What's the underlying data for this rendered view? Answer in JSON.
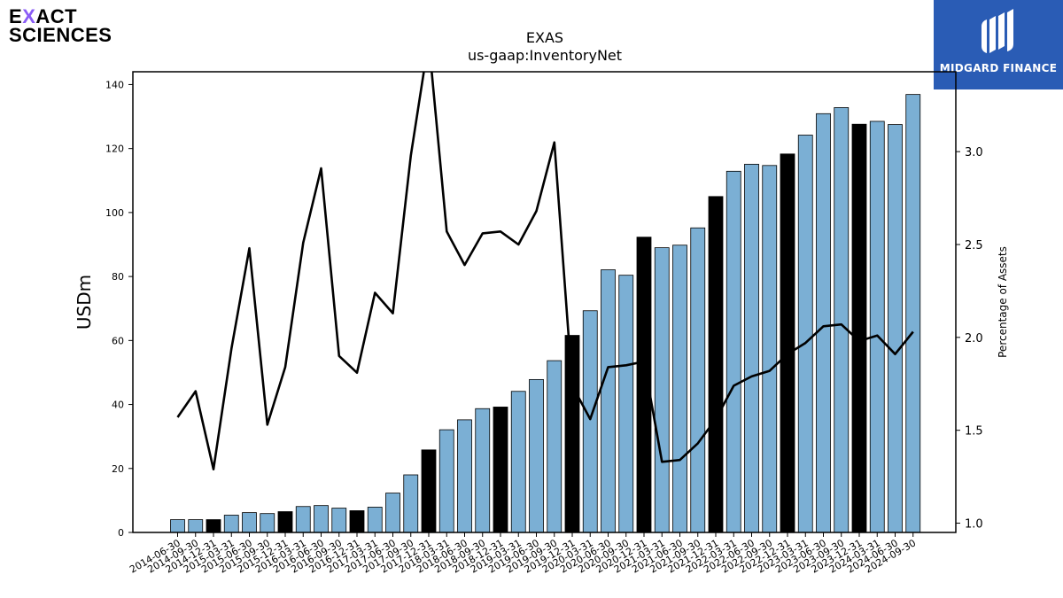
{
  "brand_left": {
    "line1_a": "E",
    "line1_x": "X",
    "line1_b": "ACT",
    "line2": "SCIENCES",
    "accent": "#8a5cf6"
  },
  "brand_right": {
    "name": "MIDGARD FINANCE",
    "bg": "#2a5cb5",
    "icon": "midgard-logo-icon"
  },
  "chart_data": {
    "type": "bar",
    "title": "EXAS",
    "subtitle": "us-gaap:InventoryNet",
    "ylabel": "USDm",
    "y2label": "Percentage of Assets",
    "ylim": [
      0,
      144
    ],
    "y2lim": [
      0.95,
      3.43
    ],
    "yticks": [
      0,
      20,
      40,
      60,
      80,
      100,
      120,
      140
    ],
    "y2ticks": [
      1.0,
      1.5,
      2.0,
      2.5,
      3.0
    ],
    "y2ticklabels": [
      "1.0",
      "1.5",
      "2.0",
      "2.5",
      "3.0"
    ],
    "colors": {
      "bar": "#7bafd4",
      "bar_highlight": "#000000",
      "line": "#000000"
    },
    "categories": [
      "2014-06-30",
      "2014-09-30",
      "2014-12-31",
      "2015-03-31",
      "2015-06-30",
      "2015-09-30",
      "2015-12-31",
      "2016-03-31",
      "2016-06-30",
      "2016-09-30",
      "2016-12-31",
      "2017-03-31",
      "2017-06-30",
      "2017-09-30",
      "2017-12-31",
      "2018-03-31",
      "2018-06-30",
      "2018-09-30",
      "2018-12-31",
      "2019-03-31",
      "2019-06-30",
      "2019-09-30",
      "2019-12-31",
      "2020-03-31",
      "2020-06-30",
      "2020-09-30",
      "2020-12-31",
      "2021-03-31",
      "2021-06-30",
      "2021-09-30",
      "2021-12-31",
      "2022-03-31",
      "2022-06-30",
      "2022-09-30",
      "2022-12-31",
      "2023-03-31",
      "2023-06-30",
      "2023-09-30",
      "2023-12-31",
      "2024-03-31",
      "2024-06-30",
      "2024-09-30"
    ],
    "series": [
      {
        "type": "bar",
        "values": [
          4.0,
          4.0,
          4.0,
          5.4,
          6.2,
          5.9,
          6.5,
          8.1,
          8.4,
          7.6,
          6.8,
          7.9,
          12.3,
          18.0,
          25.8,
          32.1,
          35.2,
          38.7,
          39.2,
          44.1,
          47.8,
          53.7,
          61.6,
          69.3,
          82.1,
          80.4,
          92.3,
          89.0,
          89.8,
          95.2,
          105.0,
          112.9,
          115.1,
          114.7,
          118.3,
          124.2,
          130.9,
          132.8,
          127.6,
          128.5,
          127.5,
          136.9
        ],
        "highlight": [
          false,
          false,
          true,
          false,
          false,
          false,
          true,
          false,
          false,
          false,
          true,
          false,
          false,
          false,
          true,
          false,
          false,
          false,
          true,
          false,
          false,
          false,
          true,
          false,
          false,
          false,
          true,
          false,
          false,
          false,
          true,
          false,
          false,
          false,
          true,
          false,
          false,
          false,
          true,
          false,
          false,
          false
        ]
      },
      {
        "type": "line",
        "axis": "right",
        "values": [
          1.57,
          1.71,
          1.29,
          1.94,
          2.48,
          1.53,
          1.84,
          2.51,
          2.91,
          1.9,
          1.81,
          2.24,
          2.13,
          2.98,
          3.6,
          2.57,
          2.39,
          2.56,
          2.57,
          2.5,
          2.68,
          3.05,
          1.74,
          1.56,
          1.84,
          1.85,
          1.87,
          1.33,
          1.34,
          1.43,
          1.56,
          1.74,
          1.79,
          1.82,
          1.91,
          1.97,
          2.06,
          2.07,
          1.98,
          2.01,
          1.91,
          2.03
        ]
      }
    ]
  }
}
